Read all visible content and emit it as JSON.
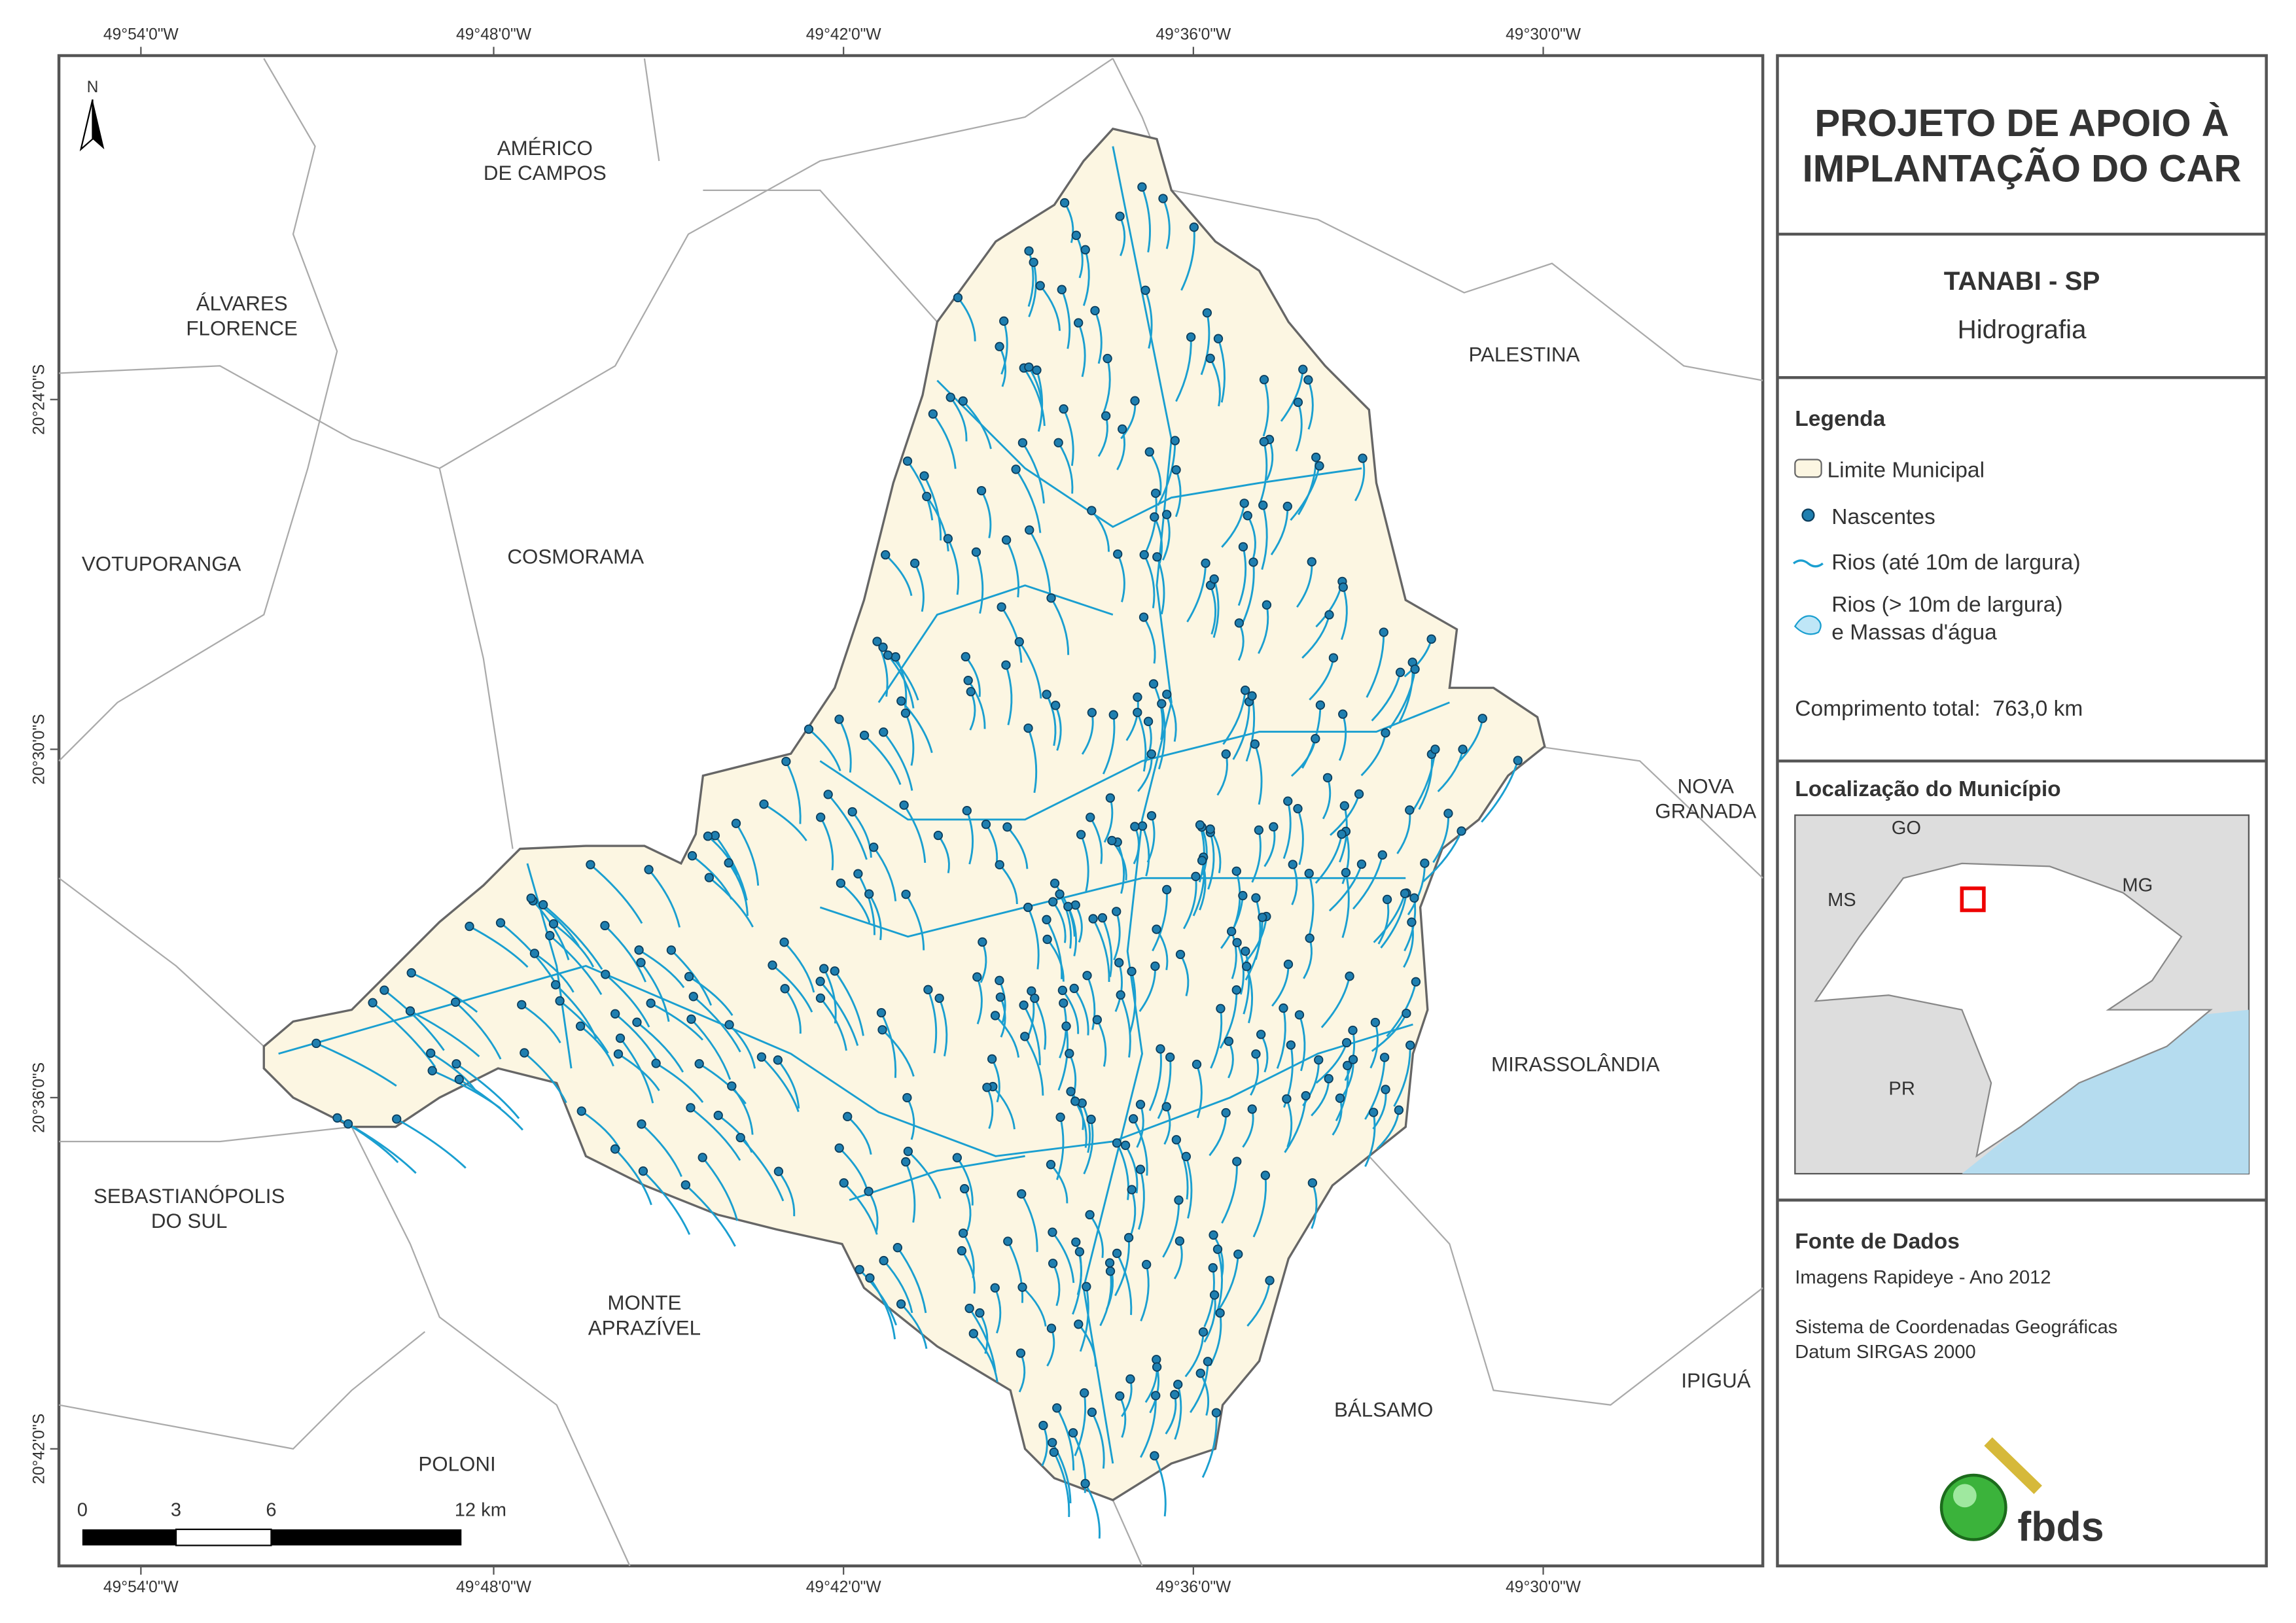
{
  "header": {
    "title_lines": [
      "PROJETO DE APOIO À",
      "IMPLANTAÇÃO DO CAR"
    ],
    "place": "TANABI - SP",
    "theme": "Hidrografia"
  },
  "legend": {
    "title": "Legenda",
    "items": [
      {
        "lines": [
          "Limite Municipal"
        ]
      },
      {
        "lines": [
          "Nascentes"
        ]
      },
      {
        "lines": [
          "Rios (até 10m de largura)"
        ]
      },
      {
        "lines": [
          "Rios (> 10m de largura)",
          "e Massas d'água"
        ]
      }
    ],
    "total_length": "Comprimento total:  763,0 km"
  },
  "location": {
    "title": "Localização do Município",
    "labels": [
      "GO",
      "MS",
      "MG",
      "PR"
    ]
  },
  "sources": {
    "title": "Fonte de Dados",
    "lines": [
      "Imagens Rapideye - Ano 2012",
      "Sistema de Coordenadas Geográficas",
      "Datum SIRGAS 2000"
    ]
  },
  "map": {
    "north": "N",
    "lon_labels": [
      "49°54'0\"W",
      "49°48'0\"W",
      "49°42'0\"W",
      "49°36'0\"W",
      "49°30'0\"W"
    ],
    "lat_labels": [
      "20°24'0\"S",
      "20°30'0\"S",
      "20°36'0\"S",
      "20°42'0\"S"
    ],
    "neighbors": [
      {
        "lines": [
          "AMÉRICO",
          "DE CAMPOS"
        ]
      },
      {
        "lines": [
          "ÁLVARES",
          "FLORENCE"
        ]
      },
      {
        "lines": [
          "PALESTINA"
        ]
      },
      {
        "lines": [
          "VOTUPORANGA"
        ]
      },
      {
        "lines": [
          "COSMORAMA"
        ]
      },
      {
        "lines": [
          "NOVA",
          "GRANADA"
        ]
      },
      {
        "lines": [
          "MIRASSOLÂNDIA"
        ]
      },
      {
        "lines": [
          "SEBASTIANÓPOLIS",
          "DO SUL"
        ]
      },
      {
        "lines": [
          "MONTE",
          "APRAZÍVEL"
        ]
      },
      {
        "lines": [
          "BÁLSAMO"
        ]
      },
      {
        "lines": [
          "IPIGUÁ"
        ]
      },
      {
        "lines": [
          "POLONI"
        ]
      }
    ],
    "scale": [
      "0",
      "3",
      "6",
      "12 km"
    ]
  },
  "logo": "fbds"
}
